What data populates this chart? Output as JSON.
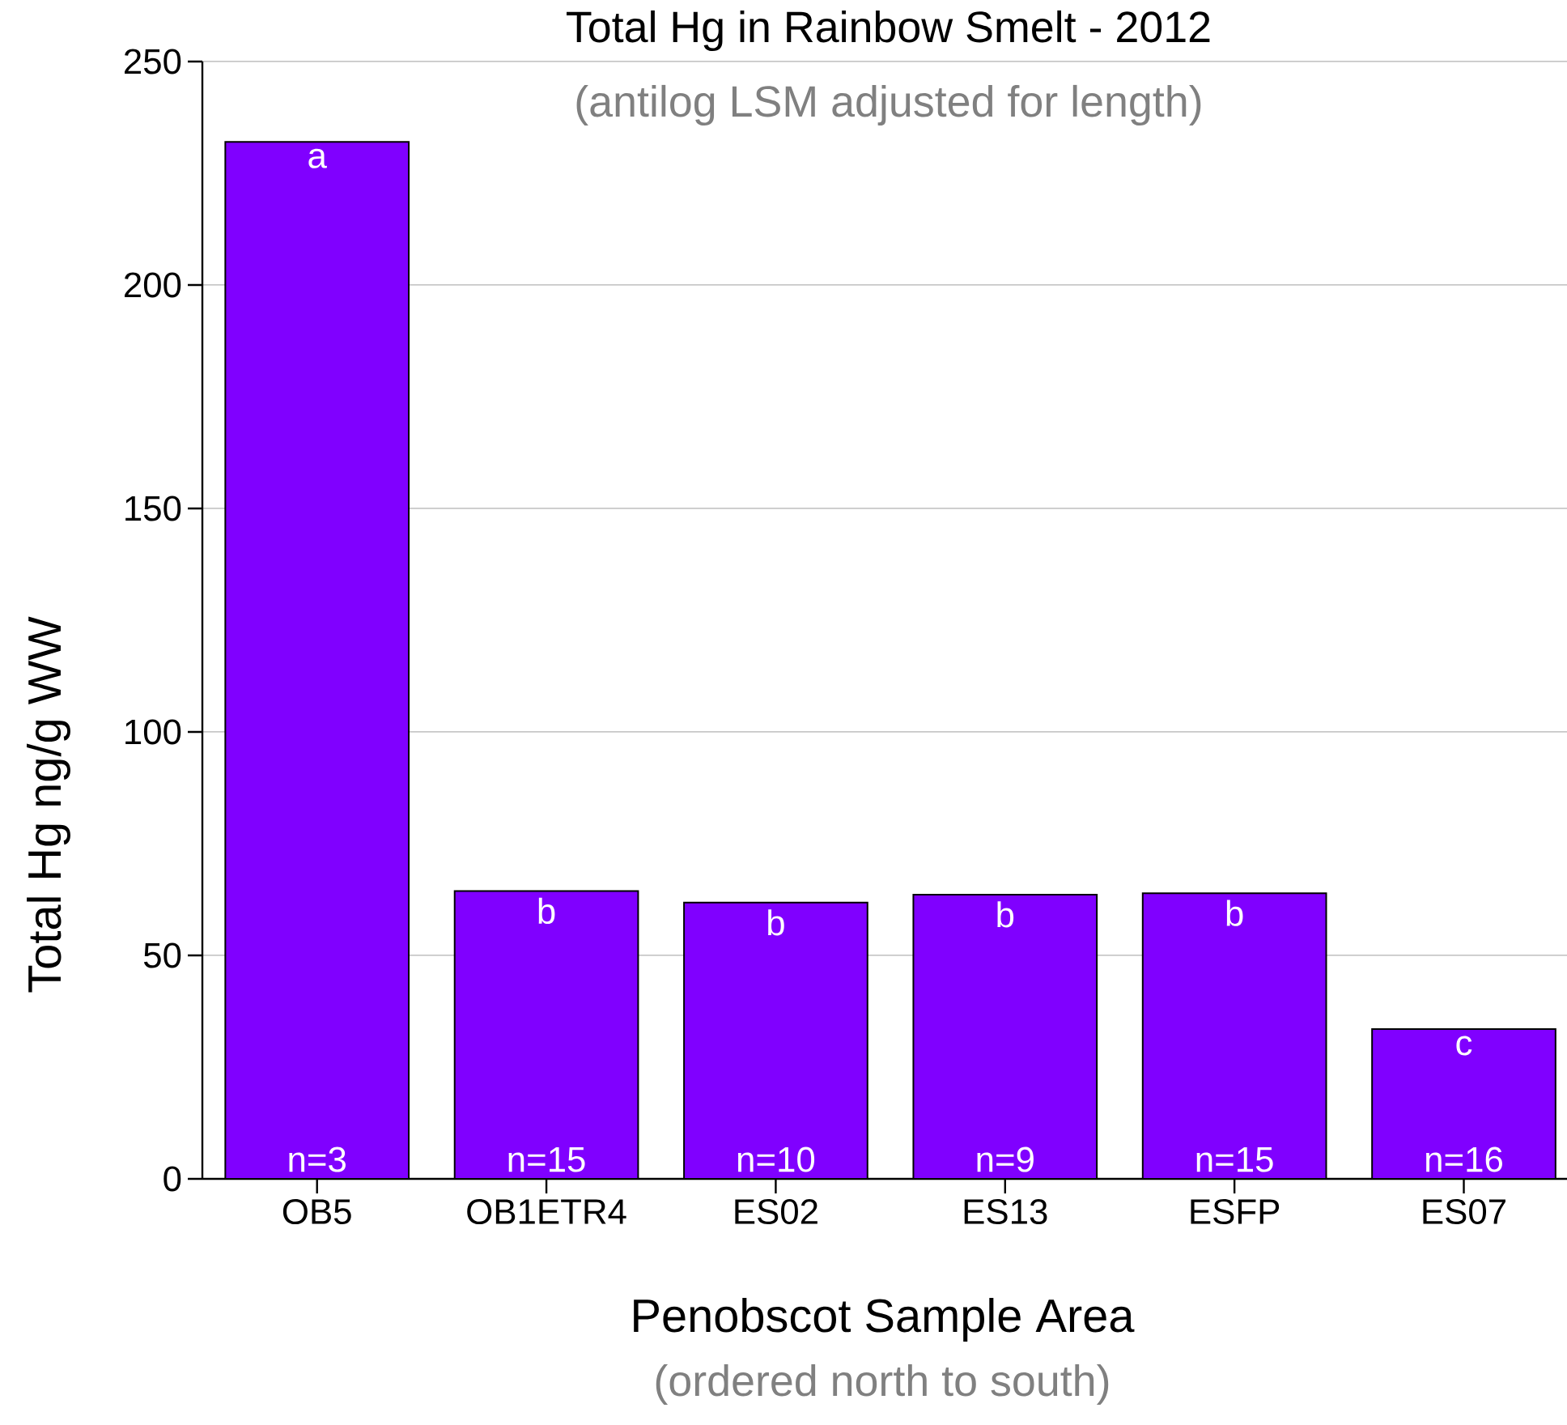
{
  "chart_data": {
    "type": "bar",
    "title": "Total Hg in Rainbow Smelt - 2012",
    "subtitle": "(antilog LSM adjusted for length)",
    "xlabel": "Penobscot Sample Area",
    "ylabel": "Total Hg ng/g WW",
    "categories": [
      "OB5",
      "OB1ETR4",
      "ES02",
      "ES13",
      "ESFP",
      "ES07"
    ],
    "values": [
      232,
      64.4,
      61.8,
      63.6,
      63.9,
      33.5
    ],
    "color": "#8000ff",
    "ylim": [
      0,
      250
    ],
    "yticks": [
      0,
      50,
      100,
      150,
      200,
      250
    ],
    "grid": "y",
    "annotations": [
      "(ordered north to south)",
      {
        "text": "a",
        "x": "OB5",
        "y": 232
      },
      {
        "text": "b",
        "x": "OB1ETR4",
        "y": 64.4
      },
      {
        "text": "b",
        "x": "ES02",
        "y": 61.8
      },
      {
        "text": "b",
        "x": "ES13",
        "y": 63.6
      },
      {
        "text": "b",
        "x": "ESFP",
        "y": 63.9
      },
      {
        "text": "c",
        "x": "ES07",
        "y": 33.5
      },
      {
        "text": "n=3",
        "x": "OB5",
        "y": 0
      },
      {
        "text": "n=15",
        "x": "OB1ETR4",
        "y": 0
      },
      {
        "text": "n=10",
        "x": "ES02",
        "y": 0
      },
      {
        "text": "n=9",
        "x": "ES13",
        "y": 0
      },
      {
        "text": "n=15",
        "x": "ESFP",
        "y": 0
      },
      {
        "text": "n=16",
        "x": "ES07",
        "y": 0
      }
    ]
  }
}
